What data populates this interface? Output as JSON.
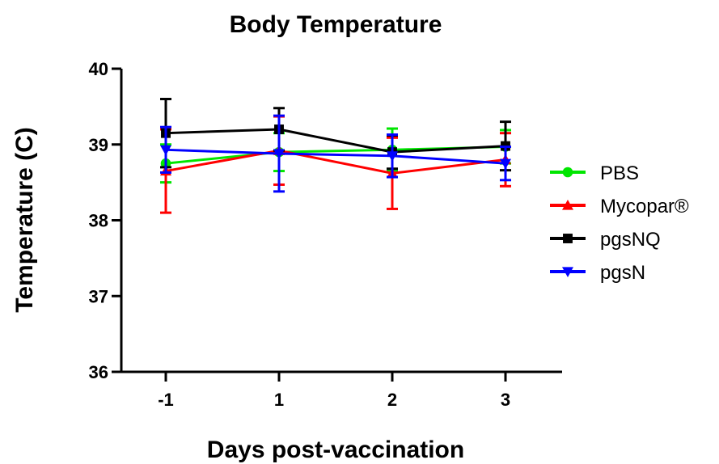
{
  "chart_data": {
    "type": "line",
    "title": "Body Temperature",
    "xlabel": "Days post-vaccination",
    "ylabel": "Temperature (C)",
    "categories": [
      "-1",
      "1",
      "2",
      "3"
    ],
    "ylim": [
      36,
      40
    ],
    "yticks": [
      "36",
      "37",
      "38",
      "39",
      "40"
    ],
    "grid": false,
    "legend_position": "right",
    "series": [
      {
        "name": "PBS",
        "color": "#00e600",
        "marker": "circle",
        "values": [
          38.75,
          38.9,
          38.93,
          38.97
        ],
        "errors": [
          0.25,
          0.25,
          0.28,
          0.22
        ]
      },
      {
        "name": "Mycopar®",
        "color": "#ff0000",
        "marker": "triangle-up",
        "values": [
          38.65,
          38.92,
          38.62,
          38.8
        ],
        "errors": [
          0.55,
          0.45,
          0.47,
          0.35
        ]
      },
      {
        "name": "pgsNQ",
        "color": "#000000",
        "marker": "square",
        "values": [
          39.15,
          39.2,
          38.9,
          38.98
        ],
        "errors": [
          0.45,
          0.28,
          0.22,
          0.32
        ]
      },
      {
        "name": "pgsN",
        "color": "#0000ff",
        "marker": "triangle-down",
        "values": [
          38.93,
          38.88,
          38.85,
          38.75
        ],
        "errors": [
          0.3,
          0.5,
          0.28,
          0.22
        ]
      }
    ]
  }
}
